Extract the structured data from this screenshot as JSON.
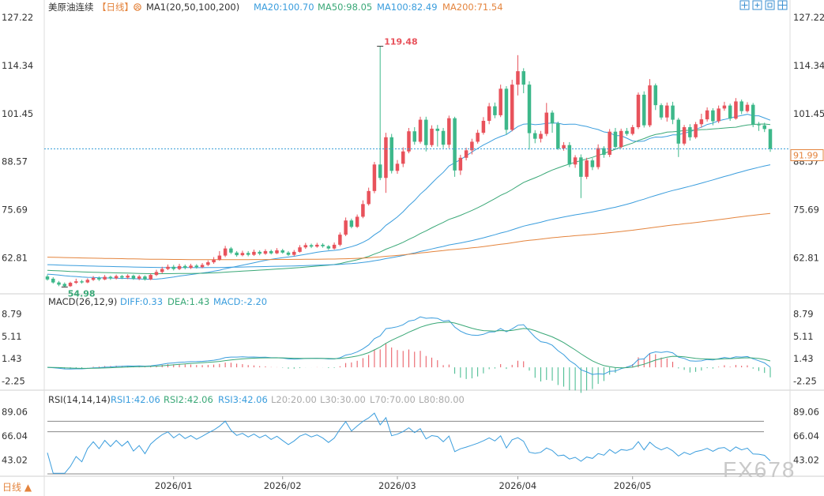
{
  "colors": {
    "up": "#e8525b",
    "down": "#3db88a",
    "ma20": "#3a9ddd",
    "ma50": "#3aa877",
    "ma100": "#3a9ddd",
    "ma200": "#e4843d",
    "macd_diff": "#3a9ddd",
    "macd_dea": "#3aa877",
    "rsi": "#3a9ddd",
    "ref_line": "#888888",
    "dashed": "#3aa0d8",
    "label_color": "#333333"
  },
  "header": {
    "symbol": "美原油连续",
    "period": "【日线】",
    "ma_label": "MA1(20,50,100,200)",
    "ma20": "MA20:100.70",
    "ma50": "MA50:98.05",
    "ma100": "MA100:82.49",
    "ma200": "MA200:71.54"
  },
  "price_axis": {
    "ticks": [
      "127.22",
      "114.34",
      "101.45",
      "88.57",
      "75.69",
      "62.81"
    ],
    "current": "91.99"
  },
  "annotations": {
    "high": "119.48",
    "low": "54.98"
  },
  "macd": {
    "label": "MACD(26,12,9)",
    "diff": "DIFF:0.33",
    "dea": "DEA:1.43",
    "macd": "MACD:-2.20",
    "ticks": [
      "8.79",
      "5.11",
      "1.43",
      "-2.25"
    ]
  },
  "rsi": {
    "label": "RSI(14,14,14)",
    "rsi1": "RSI1:42.06",
    "rsi2": "RSI2:42.06",
    "rsi3": "RSI3:42.06",
    "l20": "L20:20.00",
    "l30": "L30:30.00",
    "l70": "L70:70.00",
    "l80": "L80:80.00",
    "ticks": [
      "89.06",
      "66.04",
      "43.02"
    ]
  },
  "x_axis": [
    "2026/01",
    "2026/02",
    "2026/03",
    "2026/04",
    "2026/05"
  ],
  "footer": {
    "period_button": "日线 ▲"
  },
  "watermark": "FX678",
  "chart_data": {
    "type": "candlestick",
    "title": "美原油连续【日线】",
    "x_labels": [
      "2026/01",
      "2026/02",
      "2026/03",
      "2026/04",
      "2026/05"
    ],
    "price_range": [
      54.0,
      127.22
    ],
    "high_label": 119.48,
    "low_label": 54.98,
    "last_price": 91.99,
    "moving_averages": {
      "MA20": 100.7,
      "MA50": 98.05,
      "MA100": 82.49,
      "MA200": 71.54
    },
    "macd": {
      "fast": 26,
      "slow": 12,
      "signal": 9,
      "DIFF": 0.33,
      "DEA": 1.43,
      "MACD": -2.2,
      "range": [
        -3.5,
        9.5
      ]
    },
    "rsi": {
      "periods": [
        14,
        14,
        14
      ],
      "RSI1": 42.06,
      "RSI2": 42.06,
      "RSI3": 42.06,
      "levels": [
        20,
        30,
        70,
        80
      ],
      "range": [
        30,
        93
      ]
    },
    "candles": [
      [
        57.8,
        57.0,
        58.3,
        56.7
      ],
      [
        57.2,
        56.2,
        57.6,
        55.9
      ],
      [
        56.2,
        55.6,
        56.6,
        55.2
      ],
      [
        55.8,
        55.2,
        56.2,
        54.98
      ],
      [
        55.2,
        56.1,
        56.4,
        55.0
      ],
      [
        56.1,
        56.5,
        57.2,
        55.8
      ],
      [
        56.5,
        56.2,
        56.9,
        55.9
      ],
      [
        56.2,
        56.9,
        57.3,
        56.0
      ],
      [
        56.9,
        57.4,
        57.9,
        56.6
      ],
      [
        57.4,
        57.0,
        57.8,
        56.6
      ],
      [
        57.0,
        57.7,
        58.2,
        56.8
      ],
      [
        57.7,
        57.3,
        58.0,
        56.9
      ],
      [
        57.3,
        57.9,
        58.3,
        57.0
      ],
      [
        57.9,
        57.5,
        58.2,
        57.1
      ],
      [
        57.5,
        58.0,
        58.4,
        57.1
      ],
      [
        58.0,
        57.2,
        58.3,
        56.9
      ],
      [
        57.2,
        57.8,
        58.2,
        56.8
      ],
      [
        57.8,
        57.0,
        58.1,
        56.7
      ],
      [
        57.0,
        58.2,
        58.6,
        56.8
      ],
      [
        58.2,
        59.0,
        59.6,
        57.9
      ],
      [
        59.0,
        59.8,
        60.4,
        58.6
      ],
      [
        59.8,
        60.4,
        61.0,
        59.5
      ],
      [
        60.4,
        59.8,
        60.9,
        59.4
      ],
      [
        59.8,
        60.6,
        61.2,
        59.5
      ],
      [
        60.6,
        60.1,
        61.0,
        59.7
      ],
      [
        60.1,
        60.7,
        61.2,
        59.8
      ],
      [
        60.7,
        60.3,
        61.1,
        59.9
      ],
      [
        60.3,
        60.9,
        61.4,
        60.0
      ],
      [
        60.9,
        61.6,
        62.1,
        60.6
      ],
      [
        61.6,
        62.3,
        63.0,
        61.2
      ],
      [
        62.3,
        63.4,
        64.6,
        62.0
      ],
      [
        63.4,
        65.3,
        66.0,
        63.0
      ],
      [
        65.3,
        64.2,
        65.7,
        63.8
      ],
      [
        64.2,
        63.5,
        64.6,
        63.1
      ],
      [
        63.5,
        64.1,
        64.7,
        63.2
      ],
      [
        64.1,
        63.6,
        64.6,
        63.2
      ],
      [
        63.6,
        64.4,
        65.0,
        63.3
      ],
      [
        64.4,
        63.9,
        64.8,
        63.5
      ],
      [
        63.9,
        64.6,
        65.1,
        63.6
      ],
      [
        64.6,
        64.0,
        65.0,
        63.7
      ],
      [
        64.0,
        64.8,
        65.4,
        63.8
      ],
      [
        64.8,
        64.2,
        65.2,
        63.9
      ],
      [
        64.2,
        63.6,
        64.6,
        63.3
      ],
      [
        63.6,
        64.4,
        64.9,
        63.2
      ],
      [
        64.4,
        65.6,
        66.2,
        64.2
      ],
      [
        65.6,
        66.2,
        66.8,
        65.2
      ],
      [
        66.2,
        65.8,
        66.6,
        65.4
      ],
      [
        65.8,
        66.3,
        66.8,
        65.5
      ],
      [
        66.3,
        65.9,
        66.7,
        65.5
      ],
      [
        65.9,
        65.3,
        66.2,
        64.9
      ],
      [
        65.3,
        66.3,
        66.9,
        65.0
      ],
      [
        66.3,
        69.0,
        69.6,
        65.9
      ],
      [
        69.0,
        72.8,
        73.6,
        68.6
      ],
      [
        72.8,
        71.1,
        73.3,
        70.7
      ],
      [
        71.1,
        73.8,
        74.4,
        70.8
      ],
      [
        73.8,
        77.2,
        78.2,
        73.4
      ],
      [
        77.2,
        80.7,
        81.6,
        76.8
      ],
      [
        80.7,
        87.8,
        88.5,
        80.1
      ],
      [
        87.8,
        84.2,
        119.48,
        83.6
      ],
      [
        84.2,
        95.1,
        96.3,
        80.2
      ],
      [
        95.1,
        86.1,
        96.0,
        85.4
      ],
      [
        86.1,
        88.0,
        89.0,
        85.3
      ],
      [
        88.0,
        91.3,
        92.4,
        87.1
      ],
      [
        91.3,
        96.7,
        97.6,
        90.8
      ],
      [
        96.7,
        93.9,
        97.8,
        93.1
      ],
      [
        93.9,
        99.8,
        100.6,
        93.4
      ],
      [
        99.8,
        93.0,
        100.6,
        91.3
      ],
      [
        93.0,
        97.4,
        98.3,
        92.5
      ],
      [
        97.4,
        96.8,
        98.4,
        92.6
      ],
      [
        96.8,
        93.1,
        97.6,
        92.2
      ],
      [
        93.1,
        100.2,
        100.9,
        92.2
      ],
      [
        100.2,
        86.2,
        100.6,
        84.5
      ],
      [
        86.2,
        89.6,
        90.4,
        85.0
      ],
      [
        89.6,
        91.6,
        92.3,
        88.9
      ],
      [
        91.6,
        93.9,
        94.7,
        90.5
      ],
      [
        93.9,
        96.3,
        97.1,
        93.4
      ],
      [
        96.3,
        99.5,
        100.5,
        95.8
      ],
      [
        99.5,
        103.4,
        104.3,
        98.6
      ],
      [
        103.4,
        101.0,
        104.4,
        100.2
      ],
      [
        101.0,
        108.1,
        109.2,
        100.5
      ],
      [
        108.1,
        97.1,
        108.8,
        95.8
      ],
      [
        97.1,
        109.2,
        110.5,
        96.7
      ],
      [
        109.2,
        112.8,
        117.1,
        106.3
      ],
      [
        112.8,
        109.2,
        113.6,
        106.9
      ],
      [
        109.2,
        96.2,
        110.1,
        91.8
      ],
      [
        96.2,
        94.7,
        97.0,
        93.5
      ],
      [
        94.7,
        96.0,
        96.8,
        93.7
      ],
      [
        96.0,
        101.7,
        104.3,
        95.4
      ],
      [
        101.7,
        98.8,
        102.3,
        96.3
      ],
      [
        98.8,
        92.1,
        99.3,
        91.7
      ],
      [
        92.1,
        93.0,
        93.8,
        91.5
      ],
      [
        93.0,
        87.8,
        93.8,
        87.1
      ],
      [
        87.8,
        89.7,
        90.3,
        86.9
      ],
      [
        89.7,
        84.5,
        90.5,
        78.8
      ],
      [
        84.5,
        88.9,
        89.6,
        83.9
      ],
      [
        88.9,
        87.1,
        89.5,
        86.3
      ],
      [
        87.1,
        92.2,
        93.2,
        86.5
      ],
      [
        92.2,
        90.4,
        92.7,
        89.6
      ],
      [
        90.4,
        96.6,
        97.3,
        89.8
      ],
      [
        96.6,
        92.5,
        97.6,
        91.9
      ],
      [
        92.5,
        96.8,
        97.4,
        92.1
      ],
      [
        96.8,
        96.0,
        97.6,
        95.5
      ],
      [
        96.0,
        97.8,
        98.4,
        95.6
      ],
      [
        97.8,
        106.5,
        107.1,
        97.3
      ],
      [
        106.5,
        98.3,
        107.4,
        97.7
      ],
      [
        98.3,
        109.0,
        110.7,
        97.8
      ],
      [
        109.0,
        103.7,
        109.5,
        102.4
      ],
      [
        103.7,
        100.4,
        104.2,
        99.8
      ],
      [
        100.4,
        103.6,
        104.4,
        99.3
      ],
      [
        103.6,
        99.8,
        104.6,
        98.6
      ],
      [
        99.8,
        93.4,
        100.3,
        89.8
      ],
      [
        93.4,
        97.8,
        98.4,
        92.9
      ],
      [
        97.8,
        95.1,
        98.6,
        94.2
      ],
      [
        95.1,
        98.6,
        99.2,
        94.7
      ],
      [
        98.6,
        99.9,
        101.4,
        97.7
      ],
      [
        99.9,
        102.3,
        103.1,
        99.3
      ],
      [
        102.3,
        99.4,
        102.9,
        98.3
      ],
      [
        99.4,
        102.8,
        103.6,
        98.9
      ],
      [
        102.8,
        103.6,
        104.6,
        102.2
      ],
      [
        103.6,
        100.1,
        104.1,
        99.5
      ],
      [
        100.1,
        104.7,
        105.6,
        99.8
      ],
      [
        104.7,
        102.1,
        105.2,
        101.3
      ],
      [
        102.1,
        103.8,
        104.5,
        101.7
      ],
      [
        103.8,
        98.5,
        104.3,
        97.8
      ],
      [
        98.5,
        98.3,
        99.2,
        96.8
      ],
      [
        98.3,
        97.3,
        99.0,
        96.5
      ],
      [
        97.3,
        91.99,
        93.8,
        91.2
      ]
    ]
  }
}
